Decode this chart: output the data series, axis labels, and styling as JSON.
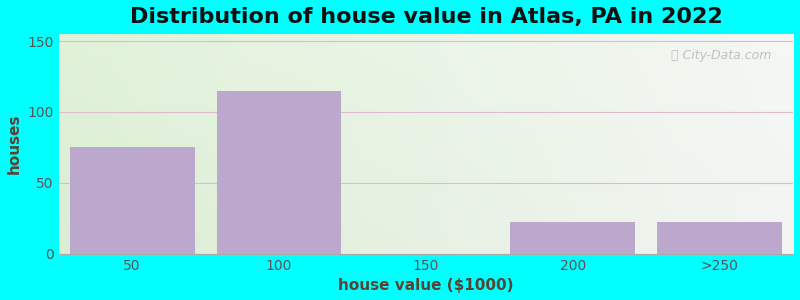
{
  "title": "Distribution of house value in Atlas, PA in 2022",
  "xlabel": "house value ($1000)",
  "ylabel": "houses",
  "bar_labels": [
    "50",
    "100",
    "150",
    "200",
    ">250"
  ],
  "bar_values": [
    75,
    115,
    0,
    22,
    22
  ],
  "bar_color": "#bba8cc",
  "yticks": [
    0,
    50,
    100,
    150
  ],
  "ylim": [
    0,
    155
  ],
  "bg_outer": "#00ffff",
  "title_fontsize": 16,
  "axis_label_fontsize": 11,
  "tick_fontsize": 10,
  "watermark_text": "City-Data.com",
  "grid_color": "#ddbbcc",
  "grid_linewidth": 0.8,
  "n_bars": 5
}
